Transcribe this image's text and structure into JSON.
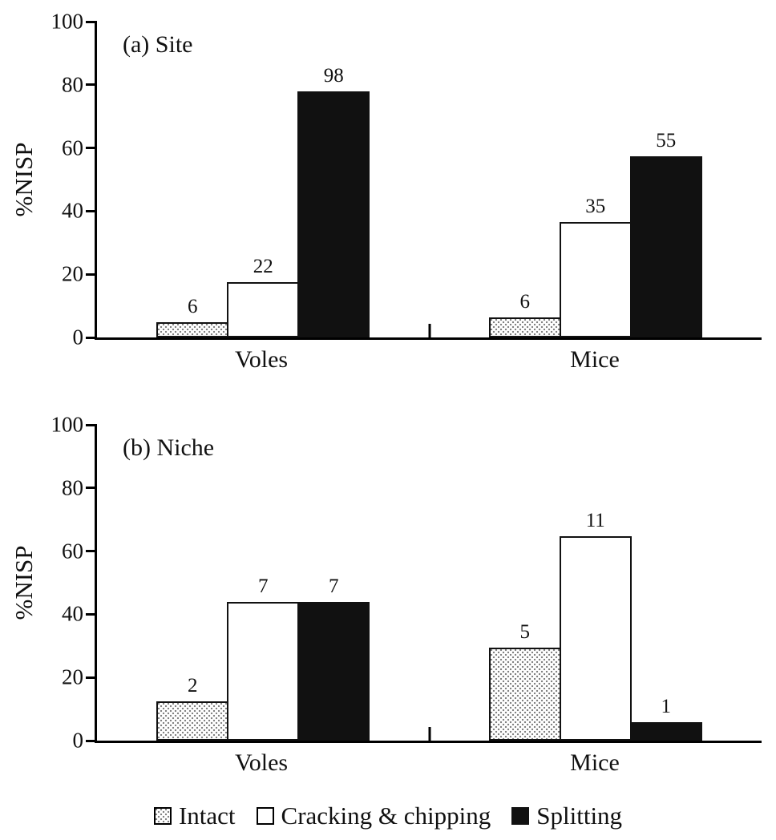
{
  "figure": {
    "background": "#ffffff",
    "text_color": "#111111",
    "axis_color": "#000000",
    "bar_fill_black": "#111111"
  },
  "chart_data": [
    {
      "type": "bar",
      "panel_label": "(a) Site",
      "ylabel": "%NISP",
      "ylim": [
        0,
        100
      ],
      "yticks": [
        0,
        20,
        40,
        60,
        80,
        100
      ],
      "grid": false,
      "legend_position": "bottom-center",
      "categories": [
        "Voles",
        "Mice"
      ],
      "series": [
        {
          "name": "Intact",
          "style": "dotted",
          "bar_labels": [
            6,
            6
          ],
          "values_pct": [
            4.8,
            6.3
          ]
        },
        {
          "name": "Cracking & chipping",
          "style": "white",
          "bar_labels": [
            22,
            35
          ],
          "values_pct": [
            17.5,
            36.5
          ]
        },
        {
          "name": "Splitting",
          "style": "black",
          "bar_labels": [
            98,
            55
          ],
          "values_pct": [
            77.8,
            57.3
          ]
        }
      ]
    },
    {
      "type": "bar",
      "panel_label": "(b) Niche",
      "ylabel": "%NISP",
      "ylim": [
        0,
        100
      ],
      "yticks": [
        0,
        20,
        40,
        60,
        80,
        100
      ],
      "grid": false,
      "legend_position": "bottom-center",
      "categories": [
        "Voles",
        "Mice"
      ],
      "series": [
        {
          "name": "Intact",
          "style": "dotted",
          "bar_labels": [
            2,
            5
          ],
          "values_pct": [
            12.5,
            29.4
          ]
        },
        {
          "name": "Cracking & chipping",
          "style": "white",
          "bar_labels": [
            7,
            11
          ],
          "values_pct": [
            43.8,
            64.7
          ]
        },
        {
          "name": "Splitting",
          "style": "black",
          "bar_labels": [
            7,
            1
          ],
          "values_pct": [
            43.8,
            5.9
          ]
        }
      ]
    }
  ],
  "legend": {
    "items": [
      {
        "label": "Intact",
        "swatch": "dotted"
      },
      {
        "label": "Cracking & chipping",
        "swatch": "white"
      },
      {
        "label": "Splitting",
        "swatch": "black"
      }
    ]
  }
}
